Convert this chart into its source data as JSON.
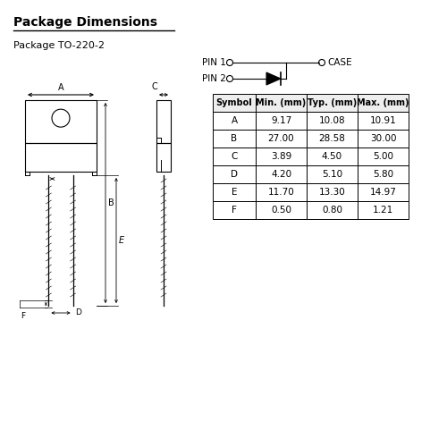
{
  "title": "Package Dimensions",
  "subtitle": "Package TO-220-2",
  "bg_color": "#ffffff",
  "table_headers": [
    "Symbol",
    "Min. (mm)",
    "Typ. (mm)",
    "Max. (mm)"
  ],
  "table_rows": [
    [
      "A",
      "9.17",
      "10.08",
      "10.91"
    ],
    [
      "B",
      "27.00",
      "28.58",
      "30.00"
    ],
    [
      "C",
      "3.89",
      "4.50",
      "5.00"
    ],
    [
      "D",
      "4.20",
      "5.10",
      "5.80"
    ],
    [
      "E",
      "11.70",
      "13.30",
      "14.97"
    ],
    [
      "F",
      "0.50",
      "0.80",
      "1.21"
    ]
  ],
  "pin1_label": "PIN 1",
  "pin2_label": "PIN 2",
  "case_label": "CASE"
}
